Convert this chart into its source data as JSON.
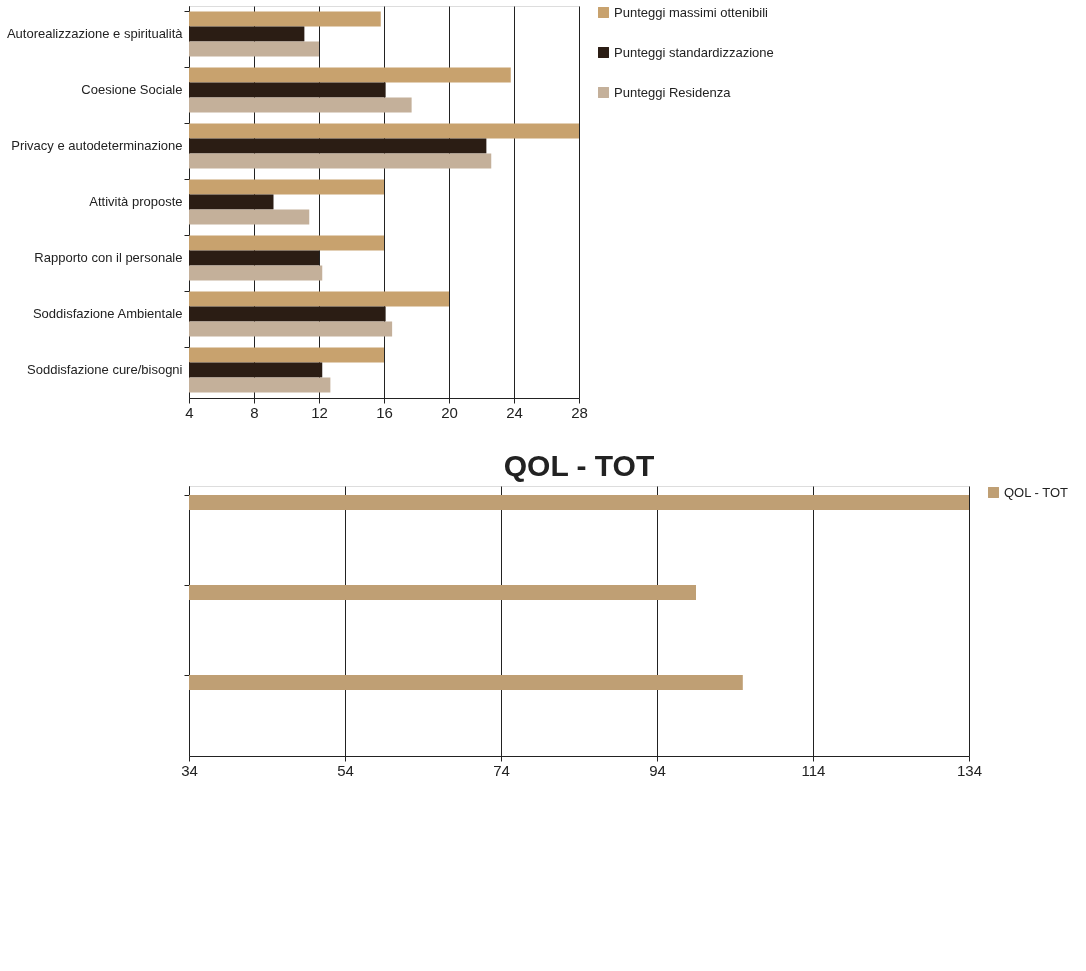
{
  "chart_data": [
    {
      "type": "bar",
      "orientation": "horizontal",
      "categories": [
        "Autorealizzazione e spiritualità",
        "Coesione Sociale",
        "Privacy e autodeterminazione",
        "Attività proposte",
        "Rapporto con il personale",
        "Soddisfazione Ambientale",
        "Soddisfazione cure/bisogni"
      ],
      "series": [
        {
          "name": "Punteggi massimi ottenibili",
          "color": "#c8a26e",
          "values": [
            15.8,
            23.8,
            28,
            16,
            16,
            20,
            16
          ]
        },
        {
          "name": "Punteggi standardizzazione",
          "color": "#2b1d14",
          "values": [
            11.1,
            16.1,
            22.3,
            9.2,
            12,
            16.1,
            12.2
          ]
        },
        {
          "name": "Punteggi Residenza",
          "color": "#c4b09a",
          "values": [
            12,
            17.7,
            22.6,
            11.4,
            12.2,
            16.5,
            12.7
          ]
        }
      ],
      "xlim": [
        4,
        28
      ],
      "xticks": [
        4,
        8,
        12,
        16,
        20,
        24,
        28
      ],
      "grid": "x",
      "legend": "right"
    },
    {
      "type": "bar",
      "orientation": "horizontal",
      "title": "QOL - TOT",
      "categories": [
        null,
        null,
        null
      ],
      "series": [
        {
          "name": "QOL - TOT",
          "color": "#bf9f74",
          "values": [
            134,
            99,
            105
          ]
        }
      ],
      "xlim": [
        34,
        134
      ],
      "xticks": [
        34,
        54,
        74,
        94,
        114,
        134
      ],
      "grid": "x",
      "legend": "right",
      "tick_labels": "x"
    }
  ]
}
